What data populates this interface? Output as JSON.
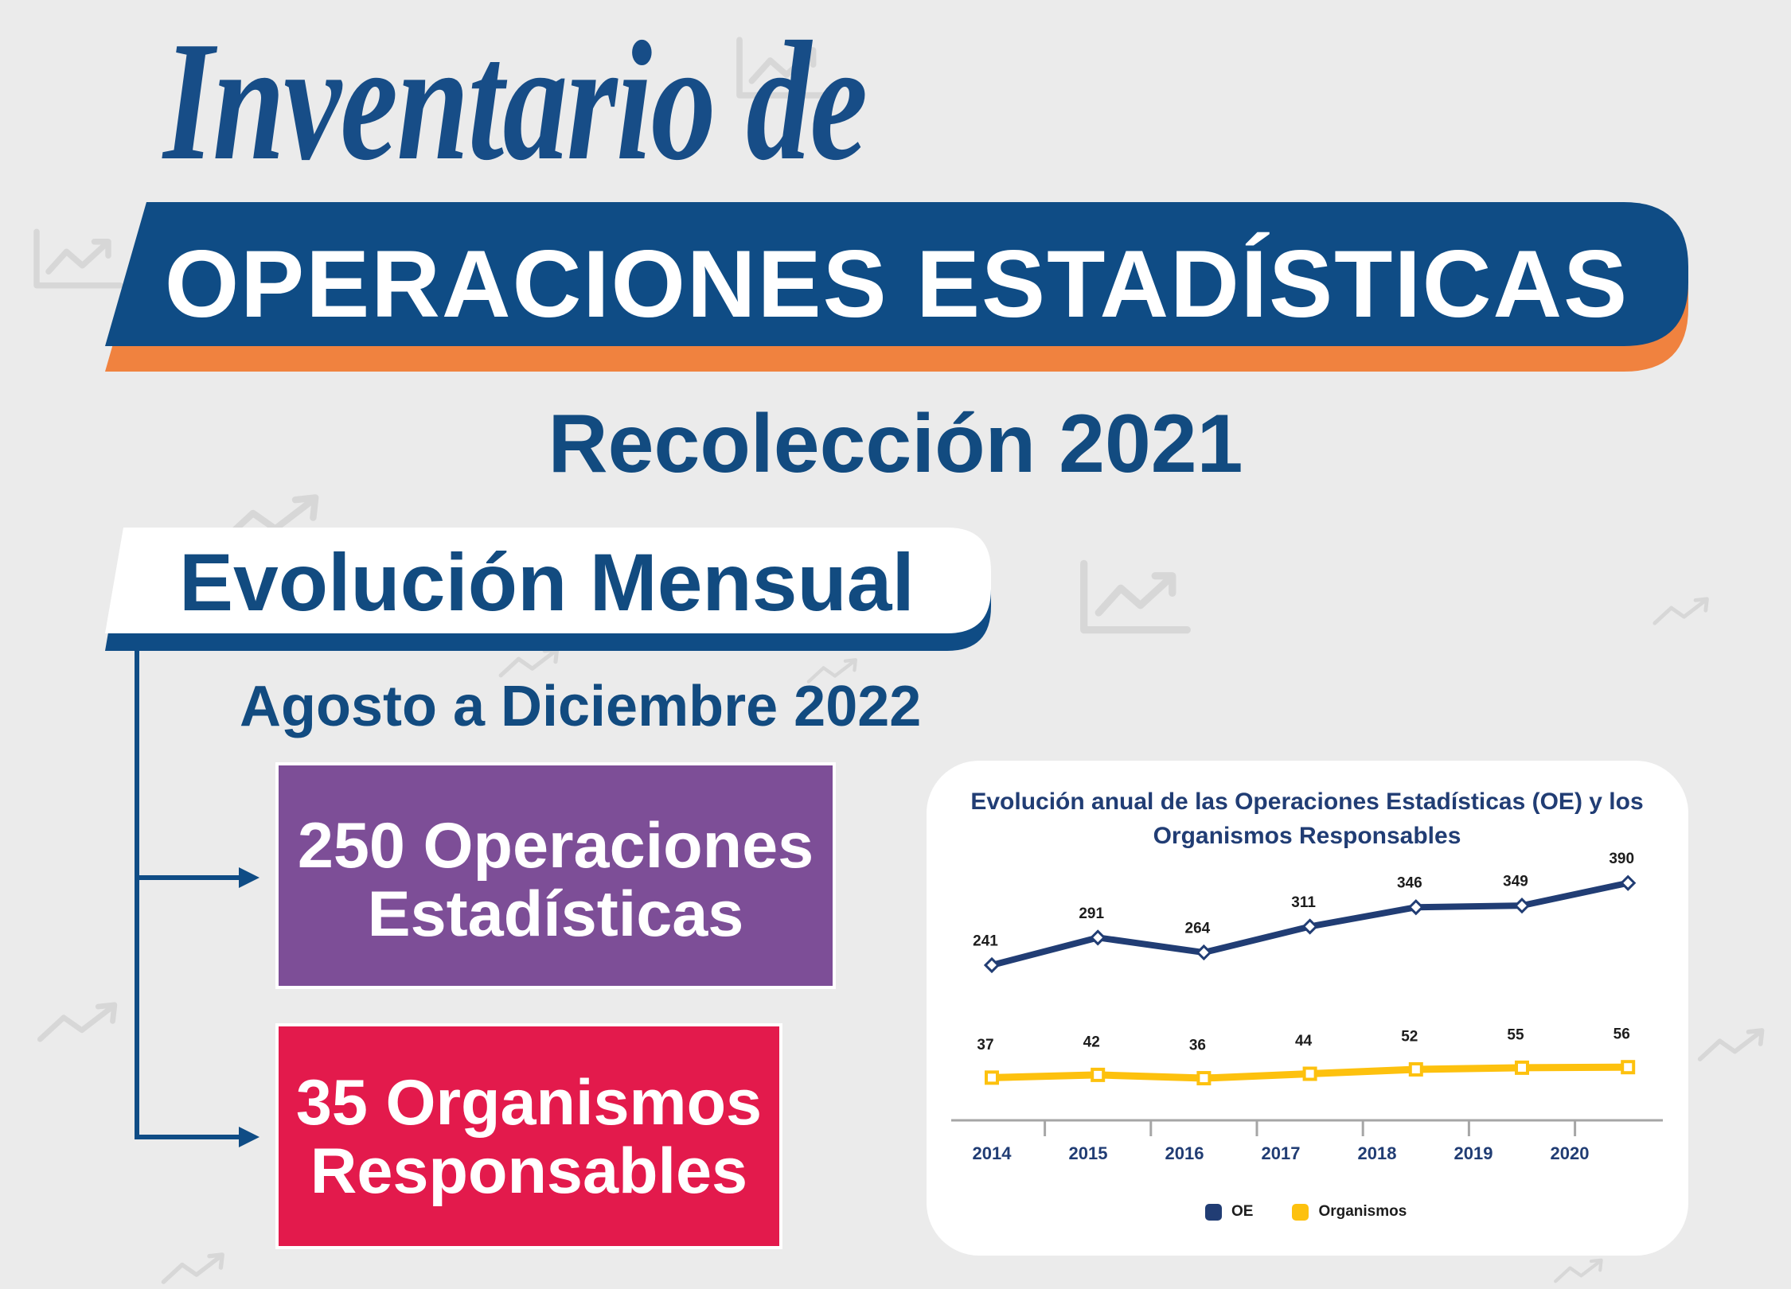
{
  "theme": {
    "page_background": "#ebebeb",
    "title_blue": "#174d87",
    "banner_blue": "#0f4c85",
    "banner_orange": "#f0823f",
    "text_blue": "#124b80",
    "card_background": "#ffffff"
  },
  "header": {
    "script_title": "Inventario de",
    "banner_title": "OPERACIONES ESTADÍSTICAS",
    "subtitle": "Recolección 2021"
  },
  "section": {
    "tab_title": "Evolución Mensual",
    "period": "Agosto a Diciembre 2022",
    "stats": [
      {
        "line1": "250 Operaciones",
        "line2": "Estadísticas",
        "color": "#7d4e97"
      },
      {
        "line1": "35 Organismos",
        "line2": "Responsables",
        "color": "#e31a4c"
      }
    ]
  },
  "chart_data": {
    "type": "line",
    "title": "Evolución anual de las Operaciones Estadísticas (OE) y los Organismos Responsables",
    "categories": [
      "2014",
      "2015",
      "2016",
      "2017",
      "2018",
      "2019",
      "2020"
    ],
    "series": [
      {
        "name": "OE",
        "values": [
          241,
          291,
          264,
          311,
          346,
          349,
          390
        ],
        "color": "#213d74",
        "marker": "diamond"
      },
      {
        "name": "Organismos",
        "values": [
          37,
          42,
          36,
          44,
          52,
          55,
          56
        ],
        "color": "#fdc10e",
        "marker": "square"
      }
    ],
    "data_labels": true,
    "legend": "bottom",
    "grid": false,
    "y_axis": "hidden"
  }
}
